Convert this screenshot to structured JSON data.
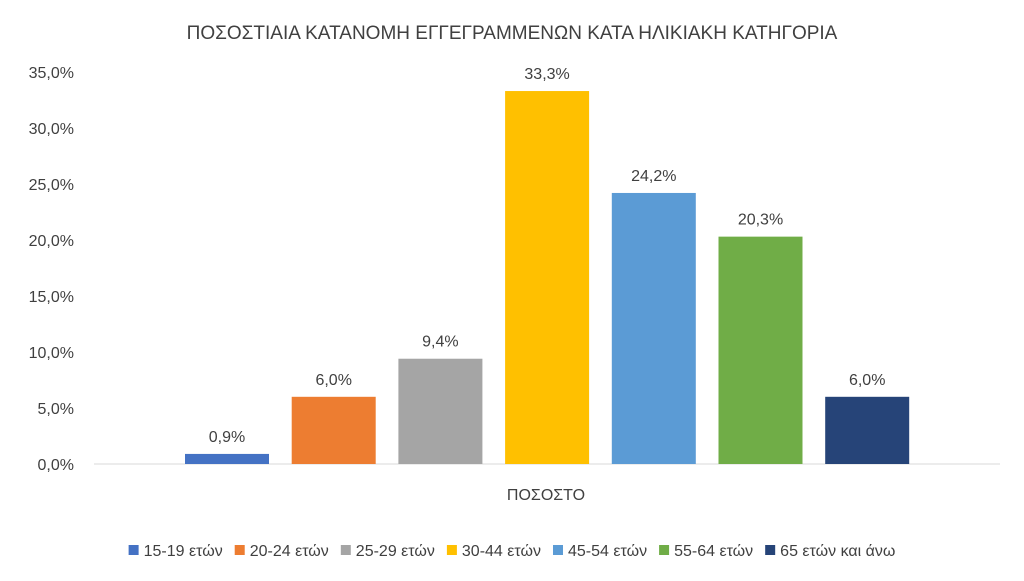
{
  "chart_data": {
    "type": "bar",
    "title": "ΠΟΣΟΣΤΙΑΙΑ ΚΑΤΑΝΟΜΗ ΕΓΓΕΓΡΑΜΜΕΝΩΝ  ΚΑΤΑ ΗΛΙΚΙΑΚΗ ΚΑΤΗΓΟΡΙΑ",
    "categories": [
      "ΠΟΣΟΣΤΟ"
    ],
    "ylim": [
      0,
      35
    ],
    "yticks": [
      0,
      5,
      10,
      15,
      20,
      25,
      30,
      35
    ],
    "ytick_labels": [
      "0,0%",
      "5,0%",
      "10,0%",
      "15,0%",
      "20,0%",
      "25,0%",
      "30,0%",
      "35,0%"
    ],
    "grid": false,
    "legend": "bottom",
    "series": [
      {
        "name": "15-19 ετών",
        "values": [
          0.9
        ],
        "label": "0,9%",
        "color": "#4472c4"
      },
      {
        "name": "20-24 ετών",
        "values": [
          6.0
        ],
        "label": "6,0%",
        "color": "#ed7d31"
      },
      {
        "name": "25-29 ετών",
        "values": [
          9.4
        ],
        "label": "9,4%",
        "color": "#a5a5a5"
      },
      {
        "name": "30-44 ετών",
        "values": [
          33.3
        ],
        "label": "33,3%",
        "color": "#ffc000"
      },
      {
        "name": "45-54 ετών",
        "values": [
          24.2
        ],
        "label": "24,2%",
        "color": "#5b9bd5"
      },
      {
        "name": "55-64 ετών",
        "values": [
          20.3
        ],
        "label": "20,3%",
        "color": "#70ad47"
      },
      {
        "name": "65 ετών και άνω",
        "values": [
          6.0
        ],
        "label": "6,0%",
        "color": "#264478"
      }
    ]
  }
}
